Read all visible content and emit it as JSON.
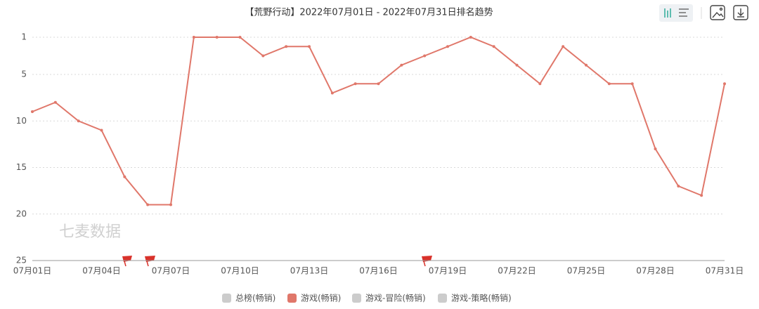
{
  "chart_data": {
    "type": "line",
    "title": "【荒野行动】2022年07月01日 - 2022年07月31日排名趋势",
    "watermark": "七麦数据",
    "categories": [
      "07月01日",
      null,
      null,
      "07月04日",
      null,
      null,
      "07月07日",
      null,
      null,
      "07月10日",
      null,
      null,
      "07月13日",
      null,
      null,
      "07月16日",
      null,
      null,
      "07月19日",
      null,
      null,
      "07月22日",
      null,
      null,
      "07月25日",
      null,
      null,
      "07月28日",
      null,
      null,
      "07月31日"
    ],
    "series": [
      {
        "color": "#e0776a",
        "values": [
          9,
          8,
          10,
          11,
          16,
          19,
          19,
          1,
          1,
          1,
          3,
          2,
          2,
          7,
          6,
          6,
          4,
          3,
          2,
          1,
          2,
          4,
          6,
          2,
          4,
          6,
          6,
          13,
          17,
          18,
          6
        ]
      }
    ],
    "legend": [
      {
        "name": "总榜(畅销)",
        "color": "#cccccc"
      },
      {
        "name": "游戏(畅销)",
        "color": "#e0776a"
      },
      {
        "name": "游戏-冒险(畅销)",
        "color": "#cccccc"
      },
      {
        "name": "游戏-策略(畅销)",
        "color": "#cccccc"
      }
    ],
    "ylim": [
      25,
      1
    ],
    "yticks": [
      1,
      5,
      10,
      15,
      20,
      25
    ],
    "grid": true
  }
}
